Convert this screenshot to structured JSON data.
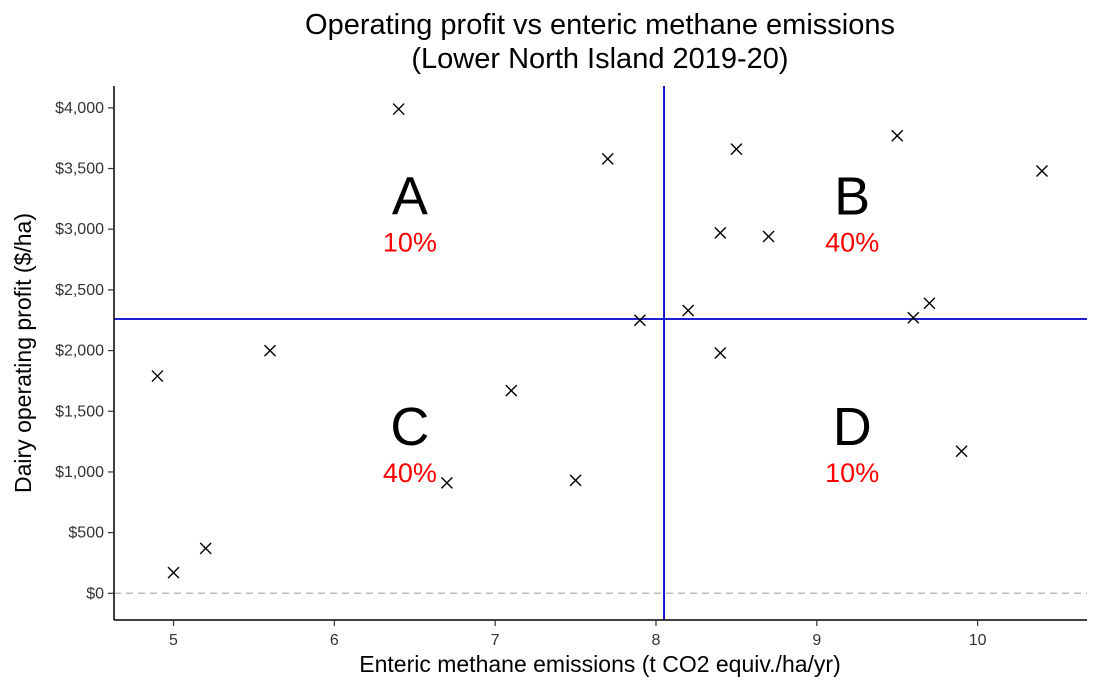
{
  "chart_data": {
    "type": "scatter",
    "title_lines": [
      "Operating profit vs enteric methane emissions",
      "(Lower North Island 2019-20)"
    ],
    "xlabel": "Enteric methane emissions (t CO2 equiv./ha/yr)",
    "ylabel": "Dairy operating profit ($/ha)",
    "xlim": [
      4.63,
      10.68
    ],
    "ylim": [
      -220,
      4180
    ],
    "x_ticks": [
      5,
      6,
      7,
      8,
      9,
      10
    ],
    "x_tick_labels": [
      "5",
      "6",
      "7",
      "8",
      "9",
      "10"
    ],
    "y_ticks": [
      0,
      500,
      1000,
      1500,
      2000,
      2500,
      3000,
      3500,
      4000
    ],
    "y_tick_labels": [
      "$0",
      "$500",
      "$1,000",
      "$1,500",
      "$2,000",
      "$2,500",
      "$3,000",
      "$3,500",
      "$4,000"
    ],
    "grid": false,
    "marker": "x",
    "points": [
      {
        "x": 4.9,
        "y": 1790
      },
      {
        "x": 5.0,
        "y": 170
      },
      {
        "x": 5.2,
        "y": 370
      },
      {
        "x": 5.6,
        "y": 2000
      },
      {
        "x": 6.4,
        "y": 3990
      },
      {
        "x": 6.7,
        "y": 910
      },
      {
        "x": 7.1,
        "y": 1670
      },
      {
        "x": 7.5,
        "y": 930
      },
      {
        "x": 7.7,
        "y": 3580
      },
      {
        "x": 7.9,
        "y": 2250
      },
      {
        "x": 8.2,
        "y": 2330
      },
      {
        "x": 8.4,
        "y": 2970
      },
      {
        "x": 8.4,
        "y": 1980
      },
      {
        "x": 8.5,
        "y": 3660
      },
      {
        "x": 8.7,
        "y": 2940
      },
      {
        "x": 9.5,
        "y": 3770
      },
      {
        "x": 9.6,
        "y": 2270
      },
      {
        "x": 9.7,
        "y": 2390
      },
      {
        "x": 9.9,
        "y": 1170
      },
      {
        "x": 10.4,
        "y": 3480
      }
    ],
    "reference_lines": {
      "vertical_x": 8.05,
      "horizontal_y": 2260,
      "zero_y": 0,
      "divider_color": "#0000cc",
      "zero_line_color": "#bbbbbb"
    },
    "quadrants": [
      {
        "letter": "A",
        "percent": "10%",
        "x": 6.47,
        "y_letter": 3270,
        "y_percent": 2900
      },
      {
        "letter": "B",
        "percent": "40%",
        "x": 9.22,
        "y_letter": 3270,
        "y_percent": 2900
      },
      {
        "letter": "C",
        "percent": "40%",
        "x": 6.47,
        "y_letter": 1370,
        "y_percent": 1000
      },
      {
        "letter": "D",
        "percent": "10%",
        "x": 9.22,
        "y_letter": 1370,
        "y_percent": 1000
      }
    ],
    "colors": {
      "marker": "#000000",
      "percent_text": "#ff0000",
      "axis": "#000000"
    }
  }
}
